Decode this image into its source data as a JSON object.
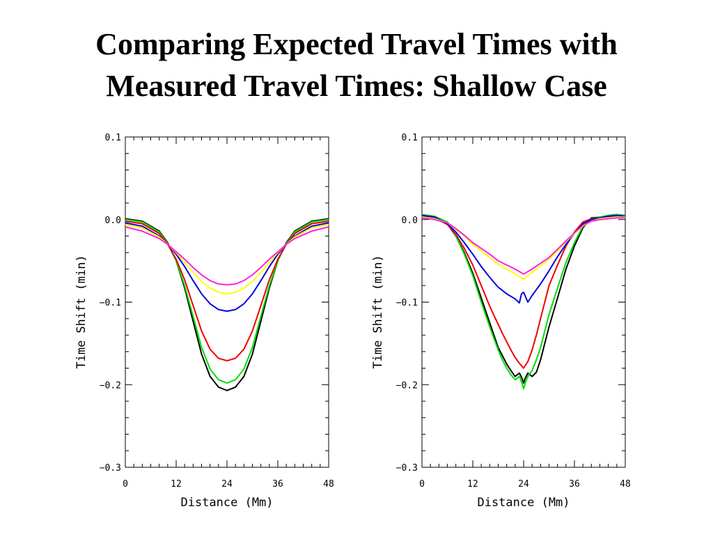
{
  "slide": {
    "title_line1": "Comparing Expected Travel Times with",
    "title_line2": "Measured Travel Times: Shallow Case"
  },
  "chart_data": [
    {
      "type": "line",
      "name": "expected",
      "xlabel": "Distance (Mm)",
      "ylabel": "Time Shift (min)",
      "xlim": [
        0,
        48
      ],
      "ylim": [
        -0.3,
        0.1
      ],
      "xticks": [
        0,
        12,
        24,
        36,
        48
      ],
      "xtick_labels": [
        "0",
        "12",
        "24",
        "36",
        "48"
      ],
      "yticks": [
        0.1,
        0.0,
        -0.1,
        -0.2,
        -0.3
      ],
      "ytick_labels": [
        "0.1",
        "0.0",
        "−0.1",
        "−0.2",
        "−0.3"
      ],
      "grid": false,
      "legend": "none",
      "series": [
        {
          "color": "#000000",
          "x": [
            0,
            4,
            8,
            10,
            12,
            14,
            16,
            18,
            20,
            22,
            24,
            26,
            28,
            30,
            32,
            34,
            36,
            38,
            40,
            44,
            48
          ],
          "y": [
            0.001,
            -0.002,
            -0.014,
            -0.028,
            -0.05,
            -0.083,
            -0.123,
            -0.163,
            -0.19,
            -0.203,
            -0.207,
            -0.203,
            -0.19,
            -0.163,
            -0.123,
            -0.083,
            -0.05,
            -0.028,
            -0.014,
            -0.002,
            0.001
          ]
        },
        {
          "color": "#00dd00",
          "x": [
            0,
            4,
            8,
            10,
            12,
            14,
            16,
            18,
            20,
            22,
            24,
            26,
            28,
            30,
            32,
            34,
            36,
            38,
            40,
            44,
            48
          ],
          "y": [
            0.0,
            -0.003,
            -0.015,
            -0.029,
            -0.05,
            -0.08,
            -0.117,
            -0.155,
            -0.181,
            -0.194,
            -0.198,
            -0.194,
            -0.181,
            -0.155,
            -0.117,
            -0.08,
            -0.05,
            -0.029,
            -0.015,
            -0.003,
            0.0
          ]
        },
        {
          "color": "#ee0000",
          "x": [
            0,
            4,
            8,
            10,
            12,
            14,
            16,
            18,
            20,
            22,
            24,
            26,
            28,
            30,
            32,
            34,
            36,
            38,
            40,
            44,
            48
          ],
          "y": [
            -0.002,
            -0.005,
            -0.017,
            -0.03,
            -0.048,
            -0.073,
            -0.104,
            -0.135,
            -0.157,
            -0.168,
            -0.171,
            -0.168,
            -0.157,
            -0.135,
            -0.104,
            -0.073,
            -0.048,
            -0.03,
            -0.017,
            -0.005,
            -0.002
          ]
        },
        {
          "color": "#0000dd",
          "x": [
            0,
            4,
            8,
            10,
            12,
            14,
            16,
            18,
            20,
            22,
            24,
            26,
            28,
            30,
            32,
            34,
            36,
            38,
            40,
            44,
            48
          ],
          "y": [
            -0.004,
            -0.008,
            -0.02,
            -0.03,
            -0.042,
            -0.057,
            -0.074,
            -0.09,
            -0.102,
            -0.109,
            -0.111,
            -0.109,
            -0.102,
            -0.09,
            -0.074,
            -0.057,
            -0.042,
            -0.03,
            -0.02,
            -0.008,
            -0.004
          ]
        },
        {
          "color": "#ffff00",
          "x": [
            0,
            4,
            8,
            10,
            12,
            14,
            16,
            18,
            20,
            22,
            24,
            26,
            28,
            30,
            32,
            34,
            36,
            38,
            40,
            44,
            48
          ],
          "y": [
            -0.006,
            -0.01,
            -0.021,
            -0.03,
            -0.04,
            -0.052,
            -0.064,
            -0.075,
            -0.083,
            -0.088,
            -0.09,
            -0.088,
            -0.083,
            -0.075,
            -0.064,
            -0.052,
            -0.04,
            -0.03,
            -0.021,
            -0.01,
            -0.006
          ]
        },
        {
          "color": "#ff22dd",
          "x": [
            0,
            4,
            8,
            10,
            12,
            14,
            16,
            18,
            20,
            22,
            24,
            26,
            28,
            30,
            32,
            34,
            36,
            38,
            40,
            44,
            48
          ],
          "y": [
            -0.009,
            -0.014,
            -0.023,
            -0.03,
            -0.039,
            -0.048,
            -0.058,
            -0.067,
            -0.074,
            -0.078,
            -0.079,
            -0.078,
            -0.074,
            -0.067,
            -0.058,
            -0.048,
            -0.039,
            -0.03,
            -0.023,
            -0.014,
            -0.009
          ]
        }
      ]
    },
    {
      "type": "line",
      "name": "measured",
      "xlabel": "Distance (Mm)",
      "ylabel": "Time Shift (min)",
      "xlim": [
        0,
        48
      ],
      "ylim": [
        -0.3,
        0.1
      ],
      "xticks": [
        0,
        12,
        24,
        36,
        48
      ],
      "xtick_labels": [
        "0",
        "12",
        "24",
        "36",
        "48"
      ],
      "yticks": [
        0.1,
        0.0,
        -0.1,
        -0.2,
        -0.3
      ],
      "ytick_labels": [
        "0.1",
        "0.0",
        "−0.1",
        "−0.2",
        "−0.3"
      ],
      "grid": false,
      "legend": "none",
      "series": [
        {
          "color": "#000000",
          "x": [
            0,
            3,
            6,
            8,
            10,
            12,
            14,
            16,
            18,
            19,
            20,
            21,
            22,
            23,
            23.6,
            24,
            24.4,
            25,
            26,
            27,
            28,
            29,
            30,
            32,
            34,
            36,
            38,
            40,
            42,
            44,
            46,
            48
          ],
          "y": [
            0.005,
            0.003,
            -0.005,
            -0.02,
            -0.04,
            -0.065,
            -0.095,
            -0.125,
            -0.155,
            -0.165,
            -0.175,
            -0.183,
            -0.19,
            -0.186,
            -0.192,
            -0.198,
            -0.192,
            -0.186,
            -0.19,
            -0.185,
            -0.17,
            -0.15,
            -0.13,
            -0.095,
            -0.06,
            -0.032,
            -0.01,
            0.002,
            0.003,
            0.005,
            0.006,
            0.005
          ]
        },
        {
          "color": "#00dd00",
          "x": [
            0,
            3,
            6,
            8,
            10,
            12,
            14,
            16,
            18,
            19,
            20,
            21,
            22,
            23,
            23.6,
            24,
            24.4,
            25,
            26,
            27,
            28,
            29,
            30,
            32,
            34,
            36,
            38,
            40,
            42,
            44,
            46,
            48
          ],
          "y": [
            0.006,
            0.004,
            -0.003,
            -0.02,
            -0.042,
            -0.068,
            -0.1,
            -0.13,
            -0.158,
            -0.17,
            -0.18,
            -0.188,
            -0.194,
            -0.19,
            -0.198,
            -0.205,
            -0.198,
            -0.19,
            -0.183,
            -0.17,
            -0.155,
            -0.135,
            -0.115,
            -0.083,
            -0.052,
            -0.028,
            -0.008,
            0.001,
            0.003,
            0.005,
            0.006,
            0.005
          ]
        },
        {
          "color": "#ee0000",
          "x": [
            0,
            3,
            6,
            8,
            10,
            12,
            14,
            16,
            18,
            19,
            20,
            21,
            22,
            23,
            24,
            25,
            26,
            27,
            28,
            29,
            30,
            32,
            34,
            36,
            38,
            40,
            42,
            44,
            46,
            48
          ],
          "y": [
            0.004,
            0.002,
            -0.006,
            -0.018,
            -0.035,
            -0.055,
            -0.08,
            -0.105,
            -0.127,
            -0.138,
            -0.148,
            -0.158,
            -0.167,
            -0.174,
            -0.18,
            -0.172,
            -0.158,
            -0.14,
            -0.12,
            -0.1,
            -0.08,
            -0.055,
            -0.032,
            -0.015,
            -0.003,
            0.001,
            0.002,
            0.003,
            0.004,
            0.003
          ]
        },
        {
          "color": "#0000dd",
          "x": [
            0,
            3,
            6,
            8,
            10,
            12,
            14,
            16,
            18,
            20,
            22,
            23,
            23.5,
            24,
            24.5,
            25,
            26,
            28,
            30,
            32,
            34,
            36,
            38,
            40,
            42,
            44,
            46,
            48
          ],
          "y": [
            0.005,
            0.003,
            -0.005,
            -0.015,
            -0.028,
            -0.042,
            -0.057,
            -0.07,
            -0.082,
            -0.09,
            -0.096,
            -0.101,
            -0.09,
            -0.088,
            -0.094,
            -0.1,
            -0.092,
            -0.078,
            -0.062,
            -0.045,
            -0.03,
            -0.017,
            -0.005,
            0.0,
            0.002,
            0.004,
            0.005,
            0.004
          ]
        },
        {
          "color": "#ffff00",
          "x": [
            0,
            3,
            6,
            8,
            10,
            12,
            14,
            16,
            18,
            20,
            22,
            24,
            26,
            28,
            30,
            32,
            34,
            36,
            38,
            40,
            42,
            44,
            46,
            48
          ],
          "y": [
            0.003,
            0.001,
            -0.004,
            -0.012,
            -0.02,
            -0.03,
            -0.038,
            -0.046,
            -0.054,
            -0.06,
            -0.066,
            -0.072,
            -0.064,
            -0.056,
            -0.048,
            -0.038,
            -0.027,
            -0.017,
            -0.008,
            -0.002,
            0.001,
            0.002,
            0.003,
            0.003
          ]
        },
        {
          "color": "#ff22dd",
          "x": [
            0,
            3,
            6,
            8,
            10,
            12,
            14,
            16,
            18,
            20,
            22,
            24,
            26,
            28,
            30,
            32,
            34,
            36,
            38,
            40,
            42,
            44,
            46,
            48
          ],
          "y": [
            0.002,
            0.0,
            -0.004,
            -0.011,
            -0.019,
            -0.028,
            -0.035,
            -0.042,
            -0.05,
            -0.055,
            -0.06,
            -0.066,
            -0.06,
            -0.053,
            -0.046,
            -0.036,
            -0.026,
            -0.016,
            -0.007,
            -0.002,
            0.0,
            0.001,
            0.002,
            0.002
          ]
        }
      ]
    }
  ]
}
